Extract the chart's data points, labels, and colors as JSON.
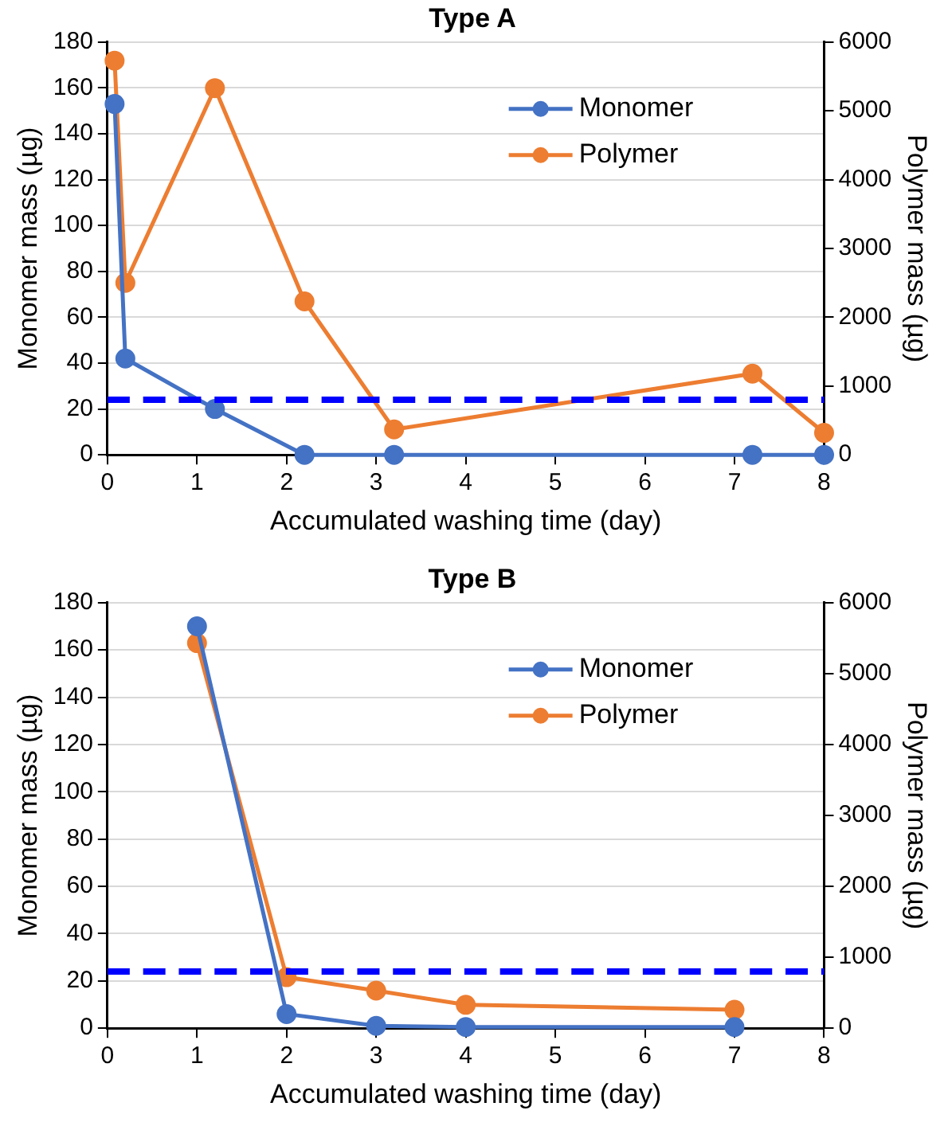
{
  "chart_data": [
    {
      "type": "line",
      "title": "Type A",
      "xlabel": "Accumulated washing time (day)",
      "ylabel": "Monomer mass (µg)",
      "y2label": "Polymer mass (µg)",
      "series": [
        {
          "name": "Monomer",
          "color": "#4472c4",
          "x": [
            0.08,
            0.2,
            1.2,
            2.2,
            3.2,
            7.2,
            8
          ],
          "values": [
            153,
            42,
            20,
            0,
            0,
            0,
            0
          ]
        },
        {
          "name": "Polymer",
          "color": "#ed7d31",
          "axis": "y2",
          "x": [
            0.08,
            0.2,
            1.2,
            2.2,
            3.2,
            7.2,
            8
          ],
          "values": [
            5730,
            2500,
            5330,
            2230,
            370,
            1180,
            320
          ]
        }
      ],
      "xlim": [
        0,
        8
      ],
      "xticks": [
        0,
        1,
        2,
        3,
        4,
        5,
        6,
        7,
        8
      ],
      "ylim": [
        0,
        180
      ],
      "yticks": [
        0,
        20,
        40,
        60,
        80,
        100,
        120,
        140,
        160,
        180
      ],
      "y2lim": [
        0,
        6000
      ],
      "y2ticks": [
        0,
        1000,
        2000,
        3000,
        4000,
        5000,
        6000
      ],
      "ref_lines": [
        {
          "axis": "y",
          "value": 24,
          "color": "#0000ff",
          "line_style": "dashed"
        }
      ],
      "grid": "y",
      "legend": "top right",
      "marker": "circle",
      "line_style": "solid"
    },
    {
      "type": "line",
      "title": "Type B",
      "xlabel": "Accumulated washing time (day)",
      "ylabel": "Monomer mass (µg)",
      "y2label": "Polymer mass (µg)",
      "series": [
        {
          "name": "Monomer",
          "color": "#4472c4",
          "x": [
            1,
            2,
            3,
            4,
            7
          ],
          "values": [
            170,
            6,
            1,
            0.5,
            0.5
          ]
        },
        {
          "name": "Polymer",
          "color": "#ed7d31",
          "axis": "y2",
          "x": [
            1,
            2,
            3,
            4,
            7
          ],
          "values": [
            5430,
            720,
            530,
            330,
            260
          ]
        }
      ],
      "xlim": [
        0,
        8
      ],
      "xticks": [
        0,
        1,
        2,
        3,
        4,
        5,
        6,
        7,
        8
      ],
      "ylim": [
        0,
        180
      ],
      "yticks": [
        0,
        20,
        40,
        60,
        80,
        100,
        120,
        140,
        160,
        180
      ],
      "y2lim": [
        0,
        6000
      ],
      "y2ticks": [
        0,
        1000,
        2000,
        3000,
        4000,
        5000,
        6000
      ],
      "ref_lines": [
        {
          "axis": "y",
          "value": 24,
          "color": "#0000ff",
          "line_style": "dashed"
        }
      ],
      "grid": "y",
      "legend": "top right",
      "marker": "circle",
      "line_style": "solid"
    }
  ]
}
